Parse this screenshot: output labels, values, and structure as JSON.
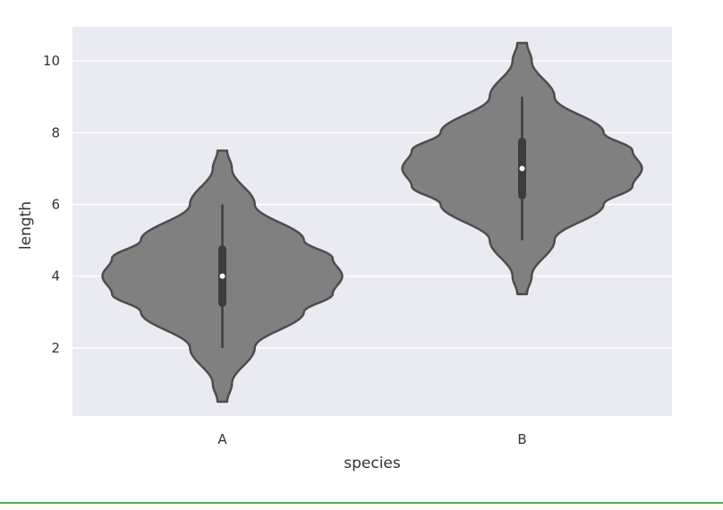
{
  "chart_data": {
    "type": "violin",
    "xlabel": "species",
    "ylabel": "length",
    "categories": [
      "A",
      "B"
    ],
    "ylim": [
      0.1,
      10.95
    ],
    "yticks": [
      2,
      4,
      6,
      8,
      10
    ],
    "grid": true,
    "background": "#EAEAF2",
    "violin_color": "#808080",
    "edge_color": "#4d4d4d",
    "violins": [
      {
        "category": "A",
        "min": 2,
        "q1": 3.25,
        "median": 4,
        "q3": 4.75,
        "max": 6,
        "kde_min": 0.5,
        "kde_max": 7.5,
        "profile": [
          [
            0.5,
            0.04
          ],
          [
            1.0,
            0.08
          ],
          [
            2.0,
            0.27
          ],
          [
            3.0,
            0.68
          ],
          [
            3.5,
            0.92
          ],
          [
            4.0,
            1.0
          ],
          [
            4.5,
            0.92
          ],
          [
            5.0,
            0.68
          ],
          [
            6.0,
            0.27
          ],
          [
            7.0,
            0.08
          ],
          [
            7.5,
            0.04
          ]
        ]
      },
      {
        "category": "B",
        "min": 5,
        "q1": 6.25,
        "median": 7,
        "q3": 7.75,
        "max": 9,
        "kde_min": 3.5,
        "kde_max": 10.5,
        "profile": [
          [
            3.5,
            0.04
          ],
          [
            4.0,
            0.08
          ],
          [
            5.0,
            0.27
          ],
          [
            6.0,
            0.68
          ],
          [
            6.5,
            0.92
          ],
          [
            7.0,
            1.0
          ],
          [
            7.5,
            0.92
          ],
          [
            8.0,
            0.68
          ],
          [
            9.0,
            0.27
          ],
          [
            10.0,
            0.08
          ],
          [
            10.5,
            0.04
          ]
        ]
      }
    ]
  }
}
